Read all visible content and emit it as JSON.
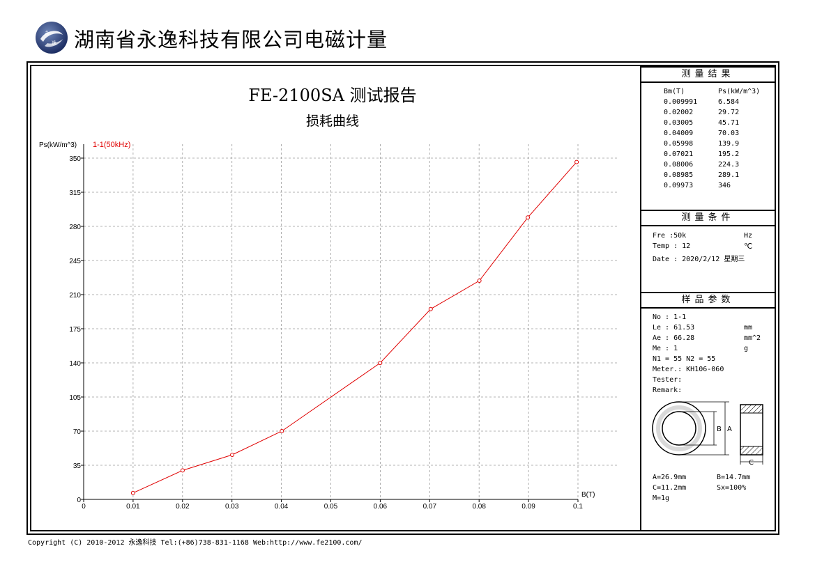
{
  "header": {
    "company_name": "湖南省永逸科技有限公司电磁计量",
    "logo_icon": "globe-logo-icon"
  },
  "chart_data": {
    "type": "line",
    "title": "FE-2100SA 测试报告",
    "subtitle": "损耗曲线",
    "xlabel": "B(T)",
    "ylabel": "Ps(kW/m^3)",
    "xlim": [
      0,
      0.1
    ],
    "ylim": [
      0,
      350
    ],
    "x_ticks": [
      "0",
      "0.01",
      "0.02",
      "0.03",
      "0.04",
      "0.05",
      "0.06",
      "0.07",
      "0.08",
      "0.09",
      "0.1"
    ],
    "y_ticks": [
      "0",
      "35",
      "70",
      "105",
      "140",
      "175",
      "210",
      "245",
      "280",
      "315",
      "350"
    ],
    "grid": true,
    "series": [
      {
        "name": "1-1(50kHz)",
        "color": "#e00000",
        "x": [
          0.009991,
          0.02002,
          0.03005,
          0.04009,
          0.05998,
          0.07021,
          0.08006,
          0.08985,
          0.09973
        ],
        "y": [
          6.584,
          29.72,
          45.71,
          70.03,
          139.9,
          195.2,
          224.3,
          289.1,
          346
        ]
      }
    ]
  },
  "results": {
    "heading": "测量结果",
    "col_b": "Bm(T)",
    "col_p": "Ps(kW/m^3)",
    "rows": [
      {
        "b": "0.009991",
        "p": "6.584"
      },
      {
        "b": "0.02002",
        "p": "29.72"
      },
      {
        "b": "0.03005",
        "p": "45.71"
      },
      {
        "b": "0.04009",
        "p": "70.03"
      },
      {
        "b": "0.05998",
        "p": "139.9"
      },
      {
        "b": "0.07021",
        "p": "195.2"
      },
      {
        "b": "0.08006",
        "p": "224.3"
      },
      {
        "b": "0.08985",
        "p": "289.1"
      },
      {
        "b": "0.09973",
        "p": "346"
      }
    ]
  },
  "conditions": {
    "heading": "测量条件",
    "fre_label": "Fre  :50k",
    "fre_unit": "Hz",
    "temp_label": "Temp : 12",
    "temp_unit": "℃",
    "date_label": "Date :  2020/2/12 星期三"
  },
  "sample": {
    "heading": "样品参数",
    "no": "No : 1-1",
    "le": "Le : 61.53",
    "le_unit": "mm",
    "ae": "Ae : 66.28",
    "ae_unit": "mm^2",
    "me": "Me : 1",
    "me_unit": "g",
    "turns": "N1 = 55   N2 = 55",
    "meter": "Meter.: KH106-060",
    "tester": "Tester:",
    "remark": "Remark:",
    "diagram_b": "B",
    "diagram_a": "A",
    "diagram_c": "C",
    "dim_a": "A=26.9mm",
    "dim_b": "B=14.7mm",
    "dim_c": "C=11.2mm",
    "sx": "Sx=100%",
    "mass": "M=1g"
  },
  "footer": {
    "text": "Copyright (C) 2010-2012 永逸科技  Tel:(+86)738-831-1168  Web:http://www.fe2100.com/"
  }
}
